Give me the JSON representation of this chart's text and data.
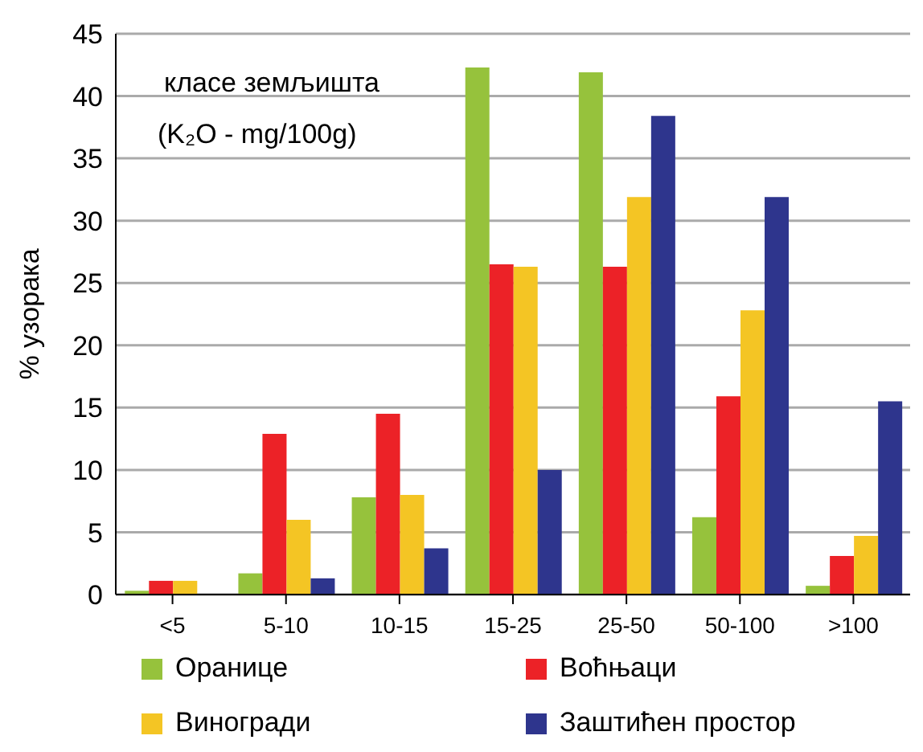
{
  "chart_data": {
    "type": "bar",
    "ylabel": "% узорака",
    "annotations": [
      "класе земљишта",
      "(K₂O - mg/100g)"
    ],
    "categories": [
      "<5",
      "5-10",
      "10-15",
      "15-25",
      "25-50",
      "50-100",
      ">100"
    ],
    "series": [
      {
        "name": "Оранице",
        "color": "#96c23c",
        "values": [
          0.3,
          1.7,
          7.8,
          42.3,
          41.9,
          6.2,
          0.7
        ]
      },
      {
        "name": "Воћњаци",
        "color": "#ec2227",
        "values": [
          1.1,
          12.9,
          14.5,
          26.5,
          26.3,
          15.9,
          3.1
        ]
      },
      {
        "name": "Виногради",
        "color": "#f4c524",
        "values": [
          1.1,
          6.0,
          8.0,
          26.3,
          31.9,
          22.8,
          4.7
        ]
      },
      {
        "name": "Заштићен простор",
        "color": "#2e358d",
        "values": [
          0,
          1.3,
          3.7,
          10.0,
          38.4,
          31.9,
          15.5
        ]
      }
    ],
    "ylim": [
      0,
      45
    ],
    "yticks": [
      0,
      5,
      10,
      15,
      20,
      25,
      30,
      35,
      40,
      45
    ],
    "grid": "y",
    "legend": "bottom"
  }
}
